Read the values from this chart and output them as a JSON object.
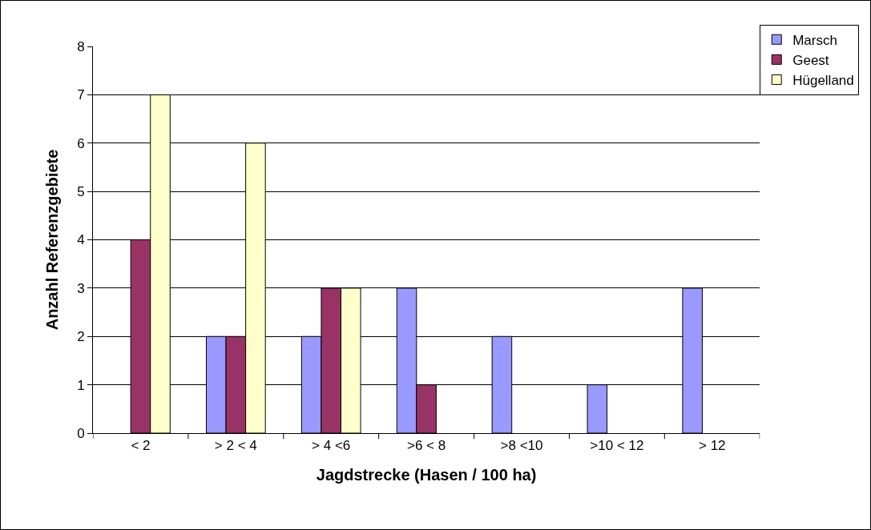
{
  "chart_data": {
    "type": "bar",
    "xlabel": "Jagdstrecke (Hasen / 100 ha)",
    "ylabel": "Anzahl Referenzgebiete",
    "categories": [
      "< 2",
      "> 2 < 4",
      "> 4 <6",
      ">6 < 8",
      ">8 <10",
      ">10 < 12",
      "> 12"
    ],
    "series": [
      {
        "name": "Marsch",
        "color": "#9999ff",
        "values": [
          null,
          2,
          2,
          3,
          2,
          1,
          3
        ]
      },
      {
        "name": "Geest",
        "color": "#993366",
        "values": [
          4,
          2,
          3,
          1,
          null,
          null,
          null
        ]
      },
      {
        "name": "Hügelland",
        "color": "#ffffcc",
        "values": [
          7,
          6,
          3,
          null,
          null,
          null,
          null
        ]
      }
    ],
    "ylim": [
      0,
      8
    ],
    "yticks": [
      0,
      1,
      2,
      3,
      4,
      5,
      6,
      7,
      8
    ],
    "grid": "y",
    "legend": "top right"
  }
}
